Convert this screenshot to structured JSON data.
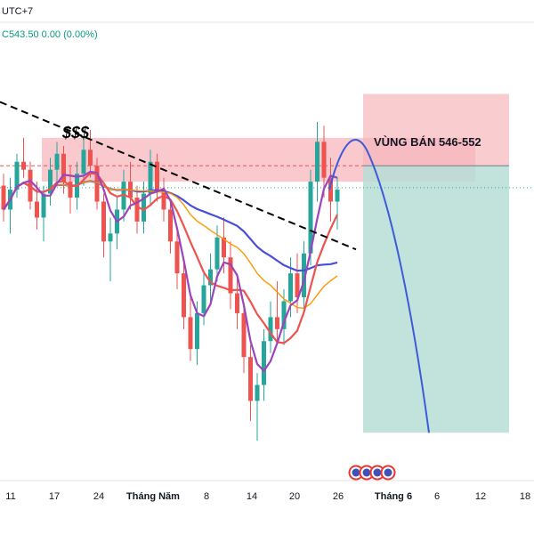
{
  "header": {
    "timezone": "UTC+7",
    "ohlc_text": "C543.50  0.00 (0.00%)"
  },
  "chart_data": {
    "type": "candlestick",
    "title": "",
    "x_tick_labels": [
      "11",
      "17",
      "24",
      "Tháng Năm",
      "8",
      "14",
      "20",
      "26",
      "Tháng 6",
      "6",
      "12",
      "18"
    ],
    "bold_tick_labels": [
      "Tháng Năm",
      "Tháng 6"
    ],
    "y_range": [
      470,
      585
    ],
    "sell_zone": {
      "label": "VÙNG BÁN 546-552",
      "low": 546,
      "high": 552
    },
    "resistance_price": 549,
    "short_position": {
      "stop": 567,
      "entry": 549,
      "target": 482
    },
    "annotation_text": "$$$",
    "grid": false,
    "colors": {
      "up": "#26a69a",
      "down": "#ef5350",
      "ma_fast": "#9c44ba",
      "ma_mid": "#ef5350",
      "ma_slow": "#ff9800",
      "ma_long": "#4a4fd9",
      "projection": "#3d5bd9",
      "zone": "#f7b7bc",
      "target_zone": "#b7ddd6",
      "trendline": "#000000"
    },
    "candles": [
      [
        544,
        547,
        535,
        538
      ],
      [
        538,
        546,
        532,
        543
      ],
      [
        543,
        552,
        541,
        550
      ],
      [
        550,
        556,
        546,
        548
      ],
      [
        548,
        550,
        538,
        540
      ],
      [
        540,
        545,
        533,
        536
      ],
      [
        536,
        544,
        530,
        542
      ],
      [
        542,
        551,
        539,
        548
      ],
      [
        548,
        555,
        545,
        552
      ],
      [
        552,
        554,
        542,
        545
      ],
      [
        545,
        549,
        537,
        541
      ],
      [
        541,
        550,
        538,
        547
      ],
      [
        547,
        556,
        544,
        553
      ],
      [
        553,
        558,
        546,
        549
      ],
      [
        549,
        551,
        538,
        540
      ],
      [
        540,
        542,
        526,
        530
      ],
      [
        530,
        536,
        520,
        532
      ],
      [
        532,
        541,
        528,
        538
      ],
      [
        538,
        548,
        535,
        545
      ],
      [
        545,
        550,
        538,
        541
      ],
      [
        541,
        544,
        532,
        535
      ],
      [
        535,
        545,
        532,
        542
      ],
      [
        542,
        553,
        539,
        550
      ],
      [
        550,
        552,
        540,
        543
      ],
      [
        543,
        546,
        535,
        538
      ],
      [
        538,
        540,
        527,
        530
      ],
      [
        530,
        533,
        518,
        522
      ],
      [
        522,
        525,
        508,
        511
      ],
      [
        511,
        516,
        500,
        503
      ],
      [
        503,
        515,
        499,
        512
      ],
      [
        512,
        522,
        509,
        519
      ],
      [
        519,
        527,
        514,
        523
      ],
      [
        523,
        534,
        520,
        531
      ],
      [
        531,
        536,
        522,
        526
      ],
      [
        526,
        530,
        513,
        517
      ],
      [
        517,
        522,
        508,
        512
      ],
      [
        512,
        514,
        497,
        501
      ],
      [
        501,
        504,
        485,
        490
      ],
      [
        490,
        497,
        480,
        494
      ],
      [
        494,
        508,
        490,
        505
      ],
      [
        505,
        515,
        502,
        511
      ],
      [
        511,
        520,
        505,
        508
      ],
      [
        508,
        518,
        504,
        515
      ],
      [
        515,
        526,
        511,
        522
      ],
      [
        522,
        527,
        512,
        516
      ],
      [
        516,
        530,
        513,
        527
      ],
      [
        527,
        548,
        524,
        545
      ],
      [
        545,
        560,
        540,
        555
      ],
      [
        555,
        559,
        541,
        546
      ],
      [
        546,
        551,
        535,
        540
      ],
      [
        540,
        546,
        533,
        543
      ]
    ]
  }
}
